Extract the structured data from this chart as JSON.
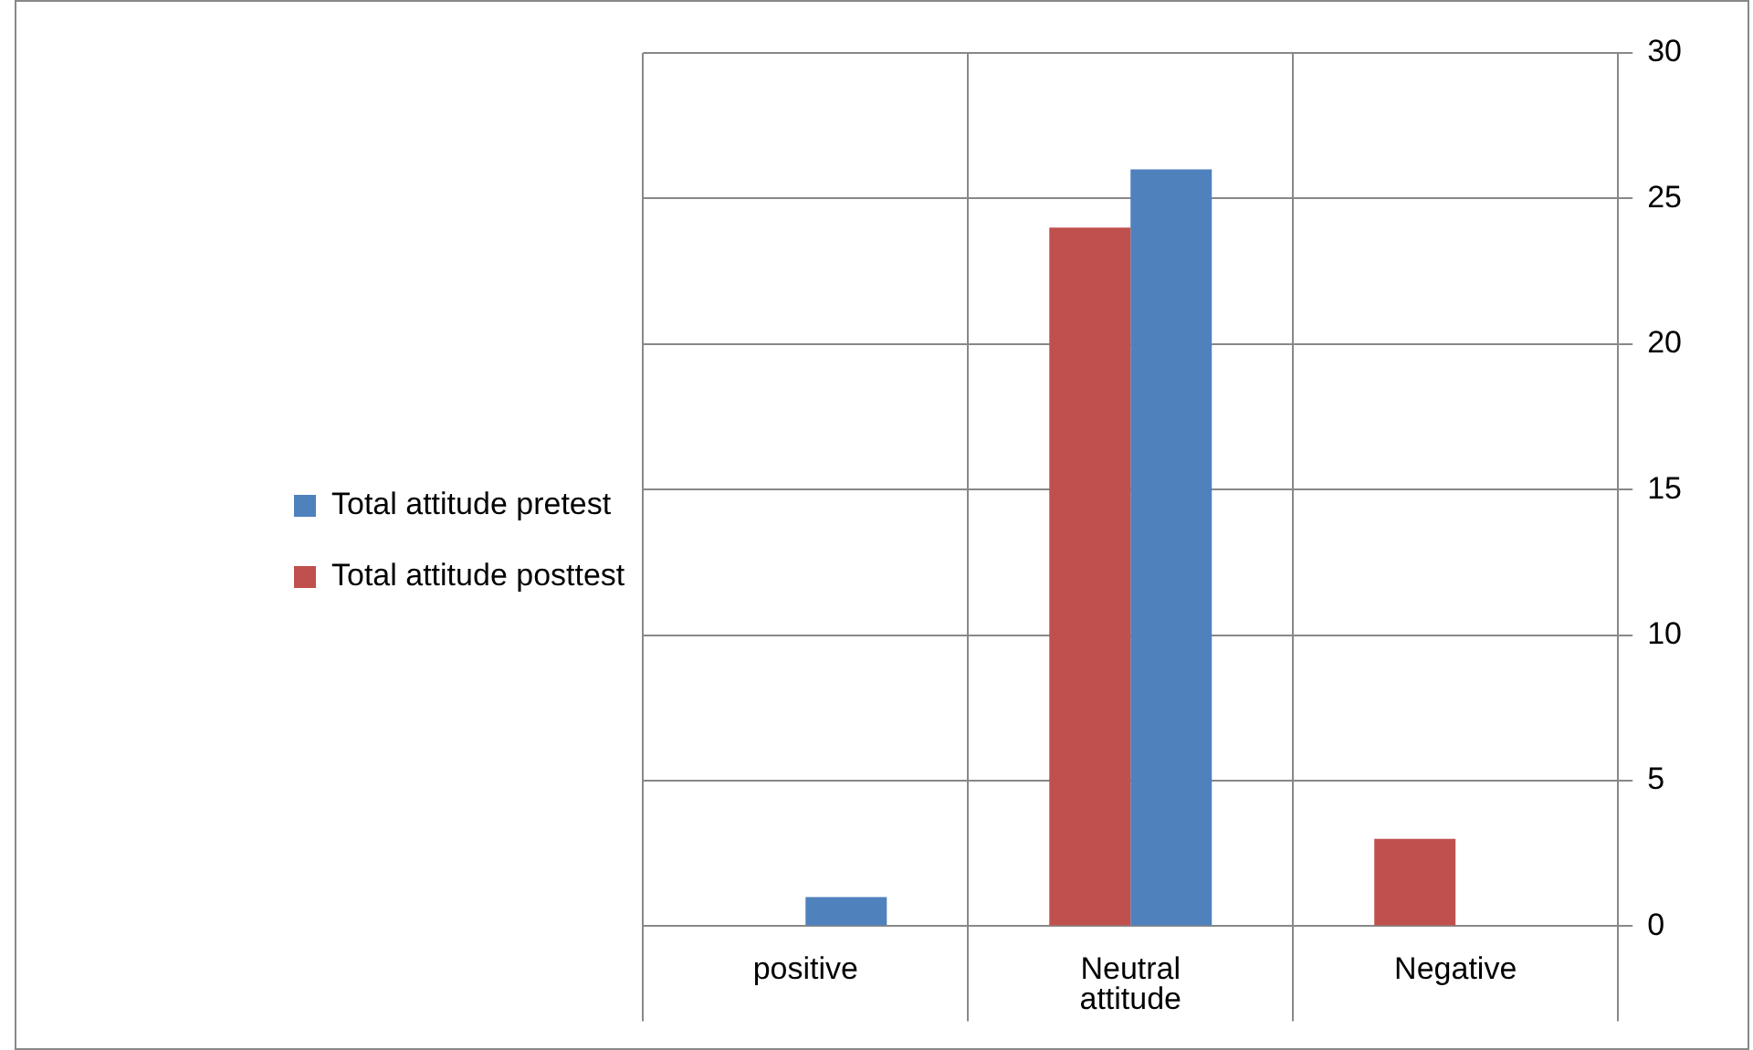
{
  "chart_data": {
    "type": "bar",
    "xlabel": "attitude",
    "categories": [
      "positive",
      "Neutral",
      "Negative"
    ],
    "series": [
      {
        "name": "Total attitude posttest",
        "color": "#c0504d",
        "values": [
          0,
          24,
          3
        ]
      },
      {
        "name": "Total attitude pretest",
        "color": "#4f81bd",
        "values": [
          1,
          26,
          0
        ]
      }
    ],
    "ylim": [
      0,
      30
    ],
    "yticks": [
      0,
      5,
      10,
      15,
      20,
      25,
      30
    ],
    "grid": "y",
    "legend": "left"
  }
}
